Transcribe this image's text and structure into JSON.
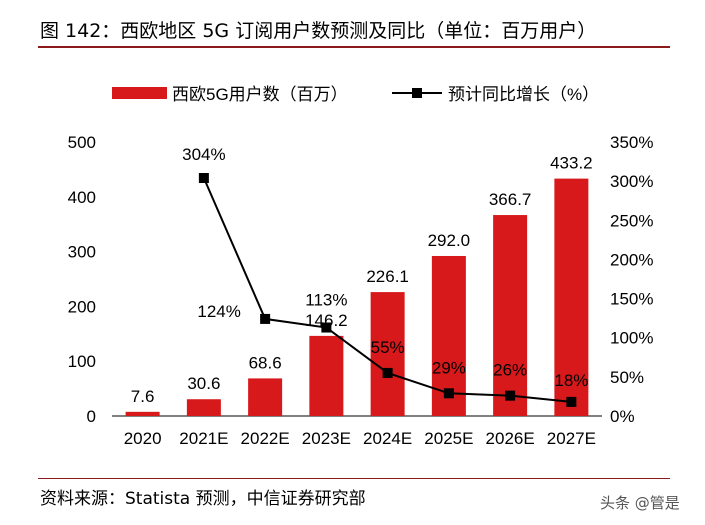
{
  "title": "图 142：西欧地区 5G 订阅用户数预测及同比（单位：百万用户）",
  "source": "资料来源：Statista 预测，中信证券研究部",
  "watermark": "头条 @管是",
  "chart_data": {
    "type": "bar+line",
    "categories": [
      "2020",
      "2021E",
      "2022E",
      "2023E",
      "2024E",
      "2025E",
      "2026E",
      "2027E"
    ],
    "series": [
      {
        "name": "西欧5G用户数（百万）",
        "type": "bar",
        "axis": "left",
        "color": "#d7191c",
        "values": [
          7.6,
          30.6,
          68.6,
          146.2,
          226.1,
          292.0,
          366.7,
          433.2
        ],
        "labels": [
          "7.6",
          "30.6",
          "68.6",
          "146.2",
          "226.1",
          "292.0",
          "366.7",
          "433.2"
        ]
      },
      {
        "name": "预计同比增长（%）",
        "type": "line",
        "axis": "right",
        "color": "#000000",
        "values": [
          null,
          304,
          124,
          113,
          55,
          29,
          26,
          18
        ],
        "labels": [
          "",
          "304%",
          "124%",
          "113%",
          "55%",
          "29%",
          "26%",
          "18%"
        ]
      }
    ],
    "y_left": {
      "range": [
        0,
        500
      ],
      "ticks": [
        "0",
        "100",
        "200",
        "300",
        "400",
        "500"
      ]
    },
    "y_right": {
      "range": [
        0,
        350
      ],
      "ticks": [
        "0%",
        "50%",
        "100%",
        "150%",
        "200%",
        "250%",
        "300%",
        "350%"
      ]
    },
    "legend": "top",
    "grid": false
  }
}
